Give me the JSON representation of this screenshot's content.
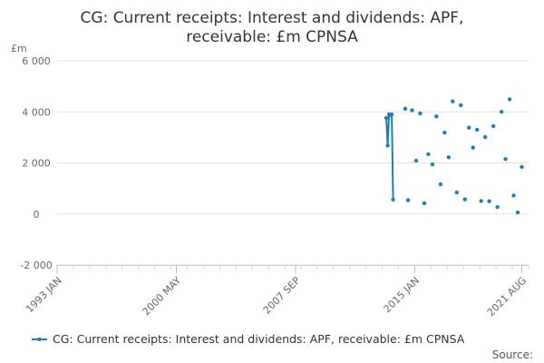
{
  "chart_data": {
    "type": "line",
    "title_lines": [
      "CG: Current receipts: Interest and dividends: APF,",
      "receivable: £m CPNSA"
    ],
    "y_unit": "£m",
    "ylim": [
      -2000,
      6000
    ],
    "y_ticks": [
      -2000,
      0,
      2000,
      4000,
      6000
    ],
    "y_tick_labels": [
      "-2 000",
      "0",
      "2 000",
      "4 000",
      "6 000"
    ],
    "xlim": [
      "1993-01",
      "2022-01"
    ],
    "x_ticks": [
      "1993-01",
      "2000-05",
      "2007-09",
      "2015-01",
      "2021-08"
    ],
    "x_tick_labels": [
      "1993 JAN",
      "2000 MAY",
      "2007 SEP",
      "2015 JAN",
      "2021 AUG"
    ],
    "grid": true,
    "legend_position": "bottom",
    "color": "#1f7fb5",
    "series": [
      {
        "name": "CG: Current receipts: Interest and dividends: APF, receivable: £m CPNSA",
        "segments": [
          [
            {
              "x": "2013-04",
              "y": 3760
            },
            {
              "x": "2013-05",
              "y": 2680
            },
            {
              "x": "2013-06",
              "y": 3900
            },
            {
              "x": "2013-07",
              "y": 3880
            },
            {
              "x": "2013-08",
              "y": 3900
            },
            {
              "x": "2013-09",
              "y": 560
            }
          ]
        ],
        "points": [
          {
            "x": "2014-06",
            "y": 4120
          },
          {
            "x": "2014-08",
            "y": 540
          },
          {
            "x": "2014-11",
            "y": 4060
          },
          {
            "x": "2015-02",
            "y": 2090
          },
          {
            "x": "2015-05",
            "y": 3940
          },
          {
            "x": "2015-08",
            "y": 420
          },
          {
            "x": "2015-11",
            "y": 2340
          },
          {
            "x": "2016-02",
            "y": 1940
          },
          {
            "x": "2016-05",
            "y": 3820
          },
          {
            "x": "2016-08",
            "y": 1160
          },
          {
            "x": "2016-11",
            "y": 3190
          },
          {
            "x": "2017-02",
            "y": 2220
          },
          {
            "x": "2017-05",
            "y": 4410
          },
          {
            "x": "2017-08",
            "y": 840
          },
          {
            "x": "2017-11",
            "y": 4260
          },
          {
            "x": "2018-02",
            "y": 570
          },
          {
            "x": "2018-05",
            "y": 3380
          },
          {
            "x": "2018-08",
            "y": 2600
          },
          {
            "x": "2018-11",
            "y": 3300
          },
          {
            "x": "2019-02",
            "y": 510
          },
          {
            "x": "2019-05",
            "y": 3010
          },
          {
            "x": "2019-08",
            "y": 500
          },
          {
            "x": "2019-11",
            "y": 3440
          },
          {
            "x": "2020-02",
            "y": 270
          },
          {
            "x": "2020-05",
            "y": 4000
          },
          {
            "x": "2020-08",
            "y": 2150
          },
          {
            "x": "2020-11",
            "y": 4490
          },
          {
            "x": "2021-02",
            "y": 720
          },
          {
            "x": "2021-05",
            "y": 60
          },
          {
            "x": "2021-08",
            "y": 1840
          }
        ]
      }
    ],
    "source_label": "Source:"
  }
}
